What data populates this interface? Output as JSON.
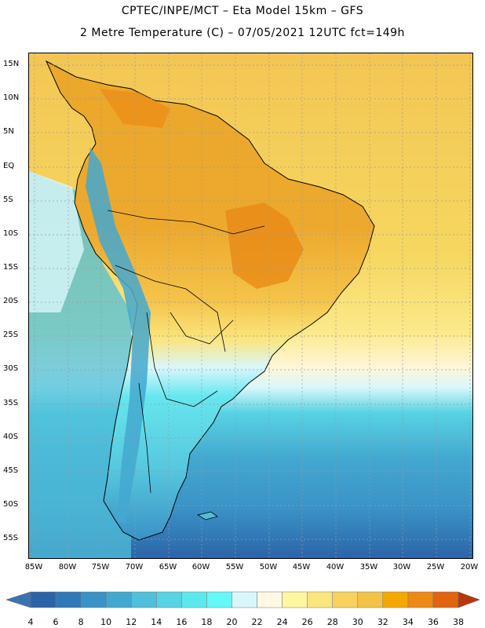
{
  "header": {
    "title_line1": "CPTEC/INPE/MCT –  Eta Model 15km – GFS",
    "title_line2": "2 Metre Temperature (C) – 07/05/2021 12UTC fct=149h"
  },
  "map": {
    "region": "South America",
    "lat_labels": [
      "15N",
      "10N",
      "5N",
      "EQ",
      "5S",
      "10S",
      "15S",
      "20S",
      "25S",
      "30S",
      "35S",
      "40S",
      "45S",
      "50S",
      "55S"
    ],
    "lon_labels": [
      "85W",
      "80W",
      "75W",
      "70W",
      "65W",
      "60W",
      "55W",
      "50W",
      "45W",
      "40W",
      "35W",
      "30W",
      "25W",
      "20W"
    ]
  },
  "colorbar": {
    "levels": [
      4,
      6,
      8,
      10,
      12,
      14,
      16,
      18,
      20,
      22,
      24,
      26,
      28,
      30,
      32,
      34,
      36,
      38
    ],
    "labels": [
      "4",
      "6",
      "8",
      "10",
      "12",
      "14",
      "16",
      "18",
      "20",
      "22",
      "24",
      "26",
      "28",
      "30",
      "32",
      "34",
      "36",
      "38"
    ],
    "colors": [
      "#2b63a8",
      "#2f79b8",
      "#3a92c6",
      "#43a8d0",
      "#4fbfda",
      "#57d3e3",
      "#5ce9ee",
      "#66f7f7",
      "#d9f7fb",
      "#fff8e3",
      "#fff6a0",
      "#fbe57d",
      "#f7d25f",
      "#f2c346",
      "#f3a900",
      "#ec8a15",
      "#e06412",
      "#c84007",
      "#b8380a"
    ],
    "under_color": "#3a73b4",
    "over_color": "#b8380a"
  }
}
